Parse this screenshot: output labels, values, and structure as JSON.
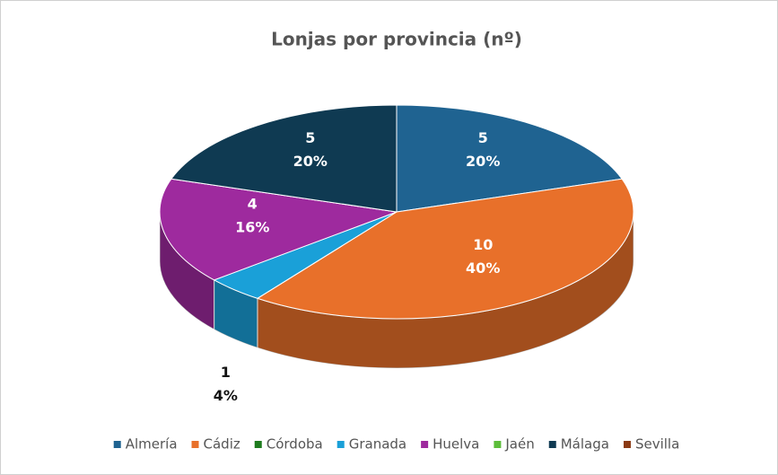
{
  "chart_data": {
    "type": "pie3d",
    "title": "Lonjas por provincia (nº)",
    "categories": [
      "Almería",
      "Cádiz",
      "Córdoba",
      "Granada",
      "Huelva",
      "Jaén",
      "Málaga",
      "Sevilla"
    ],
    "values": [
      5,
      10,
      0,
      1,
      4,
      0,
      5,
      0
    ],
    "percent_labels": [
      "20%",
      "40%",
      null,
      "4%",
      "16%",
      null,
      "20%",
      null
    ],
    "colors": [
      "#1f6391",
      "#e8702a",
      "#1e7b1e",
      "#1aa0d8",
      "#9e2a9e",
      "#5cbd3a",
      "#0f3a52",
      "#8b3a14"
    ],
    "legend": "bottom"
  }
}
